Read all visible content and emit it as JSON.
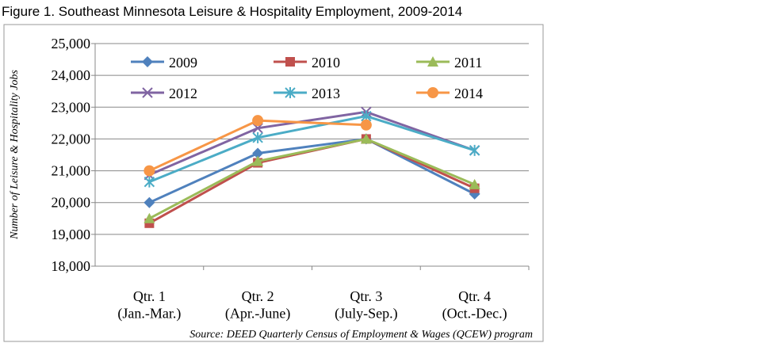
{
  "chart_data": {
    "type": "line",
    "title": "Figure 1. Southeast Minnesota Leisure & Hospitality Employment, 2009-2014",
    "ylabel": "Number of Leisure & Hospitality Jobs",
    "source": "Source: DEED Quarterly Census of Employment & Wages (QCEW) program",
    "categories": [
      "Qtr. 1\n(Jan.-Mar.)",
      "Qtr. 2\n(Apr.-June)",
      "Qtr. 3\n(July-Sep.)",
      "Qtr. 4\n(Oct.-Dec.)"
    ],
    "series": [
      {
        "name": "2009",
        "color": "#4f81bd",
        "marker": "diamond",
        "values": [
          20000,
          21550,
          22000,
          20270
        ]
      },
      {
        "name": "2010",
        "color": "#c0504d",
        "marker": "square",
        "values": [
          19350,
          21250,
          22000,
          20450
        ]
      },
      {
        "name": "2011",
        "color": "#9bbb59",
        "marker": "triangle",
        "values": [
          19500,
          21300,
          22000,
          20570
        ]
      },
      {
        "name": "2012",
        "color": "#8064a2",
        "marker": "x",
        "values": [
          20870,
          22340,
          22850,
          21640
        ]
      },
      {
        "name": "2013",
        "color": "#4bacc6",
        "marker": "star",
        "values": [
          20650,
          22040,
          22720,
          21640
        ]
      },
      {
        "name": "2014",
        "color": "#f79646",
        "marker": "circle",
        "values": [
          21000,
          22580,
          22440,
          null
        ]
      }
    ],
    "ylim": [
      18000,
      25000
    ],
    "yticks": [
      {
        "value": 18000,
        "label": "18,000"
      },
      {
        "value": 19000,
        "label": "19,000"
      },
      {
        "value": 20000,
        "label": "20,000"
      },
      {
        "value": 21000,
        "label": "21,000"
      },
      {
        "value": 22000,
        "label": "22,000"
      },
      {
        "value": 23000,
        "label": "23,000"
      },
      {
        "value": 24000,
        "label": "24,000"
      },
      {
        "value": 25000,
        "label": "25,000"
      }
    ],
    "grid": true,
    "legend": "top"
  }
}
